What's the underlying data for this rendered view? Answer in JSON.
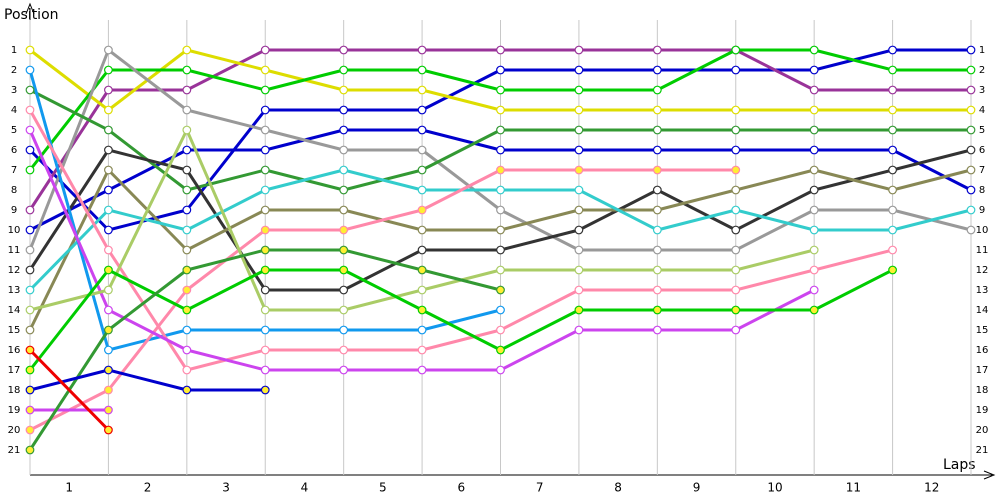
{
  "chart_data": {
    "type": "line",
    "y_axis_label": "Position",
    "x_axis_label": "Laps",
    "x": [
      0,
      1,
      2,
      3,
      4,
      5,
      6,
      7,
      8,
      9,
      10,
      11,
      12
    ],
    "xlim": [
      0,
      12
    ],
    "xticks": [
      {
        "value": 0.5,
        "label": "1"
      },
      {
        "value": 1.5,
        "label": "2"
      },
      {
        "value": 2.5,
        "label": "3"
      },
      {
        "value": 3.5,
        "label": "4"
      },
      {
        "value": 4.5,
        "label": "5"
      },
      {
        "value": 5.5,
        "label": "6"
      },
      {
        "value": 6.5,
        "label": "7"
      },
      {
        "value": 7.5,
        "label": "8"
      },
      {
        "value": 8.5,
        "label": "9"
      },
      {
        "value": 9.5,
        "label": "10"
      },
      {
        "value": 10.5,
        "label": "11"
      },
      {
        "value": 11.5,
        "label": "12"
      }
    ],
    "ylim": [
      0,
      22
    ],
    "y_inverted": true,
    "yticks": [
      1,
      2,
      3,
      4,
      5,
      6,
      7,
      8,
      9,
      10,
      11,
      12,
      13,
      14,
      15,
      16,
      17,
      18,
      19,
      20,
      21
    ],
    "grid": true,
    "series": [
      {
        "color": "#0000cc",
        "marker": "#ffffff",
        "values": [
          6,
          10,
          9,
          4,
          4,
          4,
          2,
          2,
          2,
          2,
          2,
          1,
          1
        ]
      },
      {
        "color": "#0000cc",
        "marker": "#ffffff",
        "values": [
          10,
          8,
          6,
          6,
          5,
          5,
          6,
          6,
          6,
          6,
          6,
          6,
          8
        ]
      },
      {
        "color": "#993399",
        "marker": "#ffffff",
        "values": [
          9,
          3,
          3,
          1,
          1,
          1,
          1,
          1,
          1,
          1,
          3,
          3,
          3
        ]
      },
      {
        "color": "#dddd00",
        "marker": "#ffffff",
        "values": [
          1,
          4,
          1,
          2,
          3,
          3,
          4,
          4,
          4,
          4,
          4,
          4,
          4
        ]
      },
      {
        "color": "#00cc00",
        "marker": "#ffffff",
        "values": [
          7,
          2,
          2,
          3,
          2,
          2,
          3,
          3,
          3,
          1,
          1,
          2,
          2
        ]
      },
      {
        "color": "#999999",
        "marker": "#ffffff",
        "values": [
          11,
          1,
          4,
          5,
          6,
          6,
          9,
          11,
          11,
          11,
          9,
          9,
          10
        ]
      },
      {
        "color": "#339933",
        "marker": "#ffffff",
        "values": [
          3,
          5,
          8,
          7,
          8,
          7,
          5,
          5,
          5,
          5,
          5,
          5,
          5
        ]
      },
      {
        "color": "#333333",
        "marker": "#ffffff",
        "values": [
          12,
          6,
          7,
          13,
          13,
          11,
          11,
          10,
          8,
          10,
          8,
          7,
          6
        ]
      },
      {
        "color": "#888855",
        "marker": "#ffffff",
        "values": [
          15,
          7,
          11,
          9,
          9,
          10,
          10,
          9,
          9,
          8,
          7,
          8,
          7
        ]
      },
      {
        "color": "#33cccc",
        "marker": "#ffffff",
        "values": [
          13,
          9,
          10,
          8,
          7,
          8,
          8,
          8,
          10,
          9,
          10,
          10,
          9
        ]
      },
      {
        "color": "#1199ee",
        "marker": "#ffffff",
        "values": [
          2,
          16,
          15,
          15,
          15,
          15,
          14,
          null,
          null,
          null,
          null,
          null,
          null
        ]
      },
      {
        "color": "#ff88aa",
        "marker": "#ffffff",
        "values": [
          4,
          11,
          17,
          16,
          16,
          16,
          15,
          13,
          13,
          13,
          12,
          11,
          null
        ]
      },
      {
        "color": "#ff88aa",
        "marker": "#ffee33",
        "values": [
          20,
          18,
          13,
          10,
          10,
          9,
          7,
          7,
          7,
          7,
          null,
          null,
          null
        ]
      },
      {
        "color": "#cc44ee",
        "marker": "#ffffff",
        "values": [
          5,
          14,
          16,
          17,
          17,
          17,
          17,
          15,
          15,
          15,
          13,
          null,
          null
        ]
      },
      {
        "color": "#cc44ee",
        "marker": "#ffee33",
        "values": [
          19,
          19,
          null,
          null,
          null,
          null,
          null,
          null,
          null,
          null,
          null,
          null,
          null
        ]
      },
      {
        "color": "#aacc66",
        "marker": "#ffffff",
        "values": [
          14,
          13,
          5,
          14,
          14,
          13,
          12,
          12,
          12,
          12,
          11,
          null,
          null
        ]
      },
      {
        "color": "#00cc00",
        "marker": "#ffee33",
        "values": [
          17,
          12,
          14,
          12,
          12,
          14,
          16,
          14,
          14,
          14,
          14,
          12,
          null
        ]
      },
      {
        "color": "#339933",
        "marker": "#ffee33",
        "values": [
          21,
          15,
          12,
          11,
          11,
          12,
          13,
          null,
          null,
          null,
          null,
          null,
          null
        ]
      },
      {
        "color": "#0000cc",
        "marker": "#ffee33",
        "values": [
          18,
          17,
          18,
          18,
          null,
          null,
          null,
          null,
          null,
          null,
          null,
          null,
          null
        ]
      },
      {
        "color": "#ee0000",
        "marker": "#ffee33",
        "values": [
          16,
          20,
          null,
          null,
          null,
          null,
          null,
          null,
          null,
          null,
          null,
          null,
          null
        ]
      }
    ]
  }
}
